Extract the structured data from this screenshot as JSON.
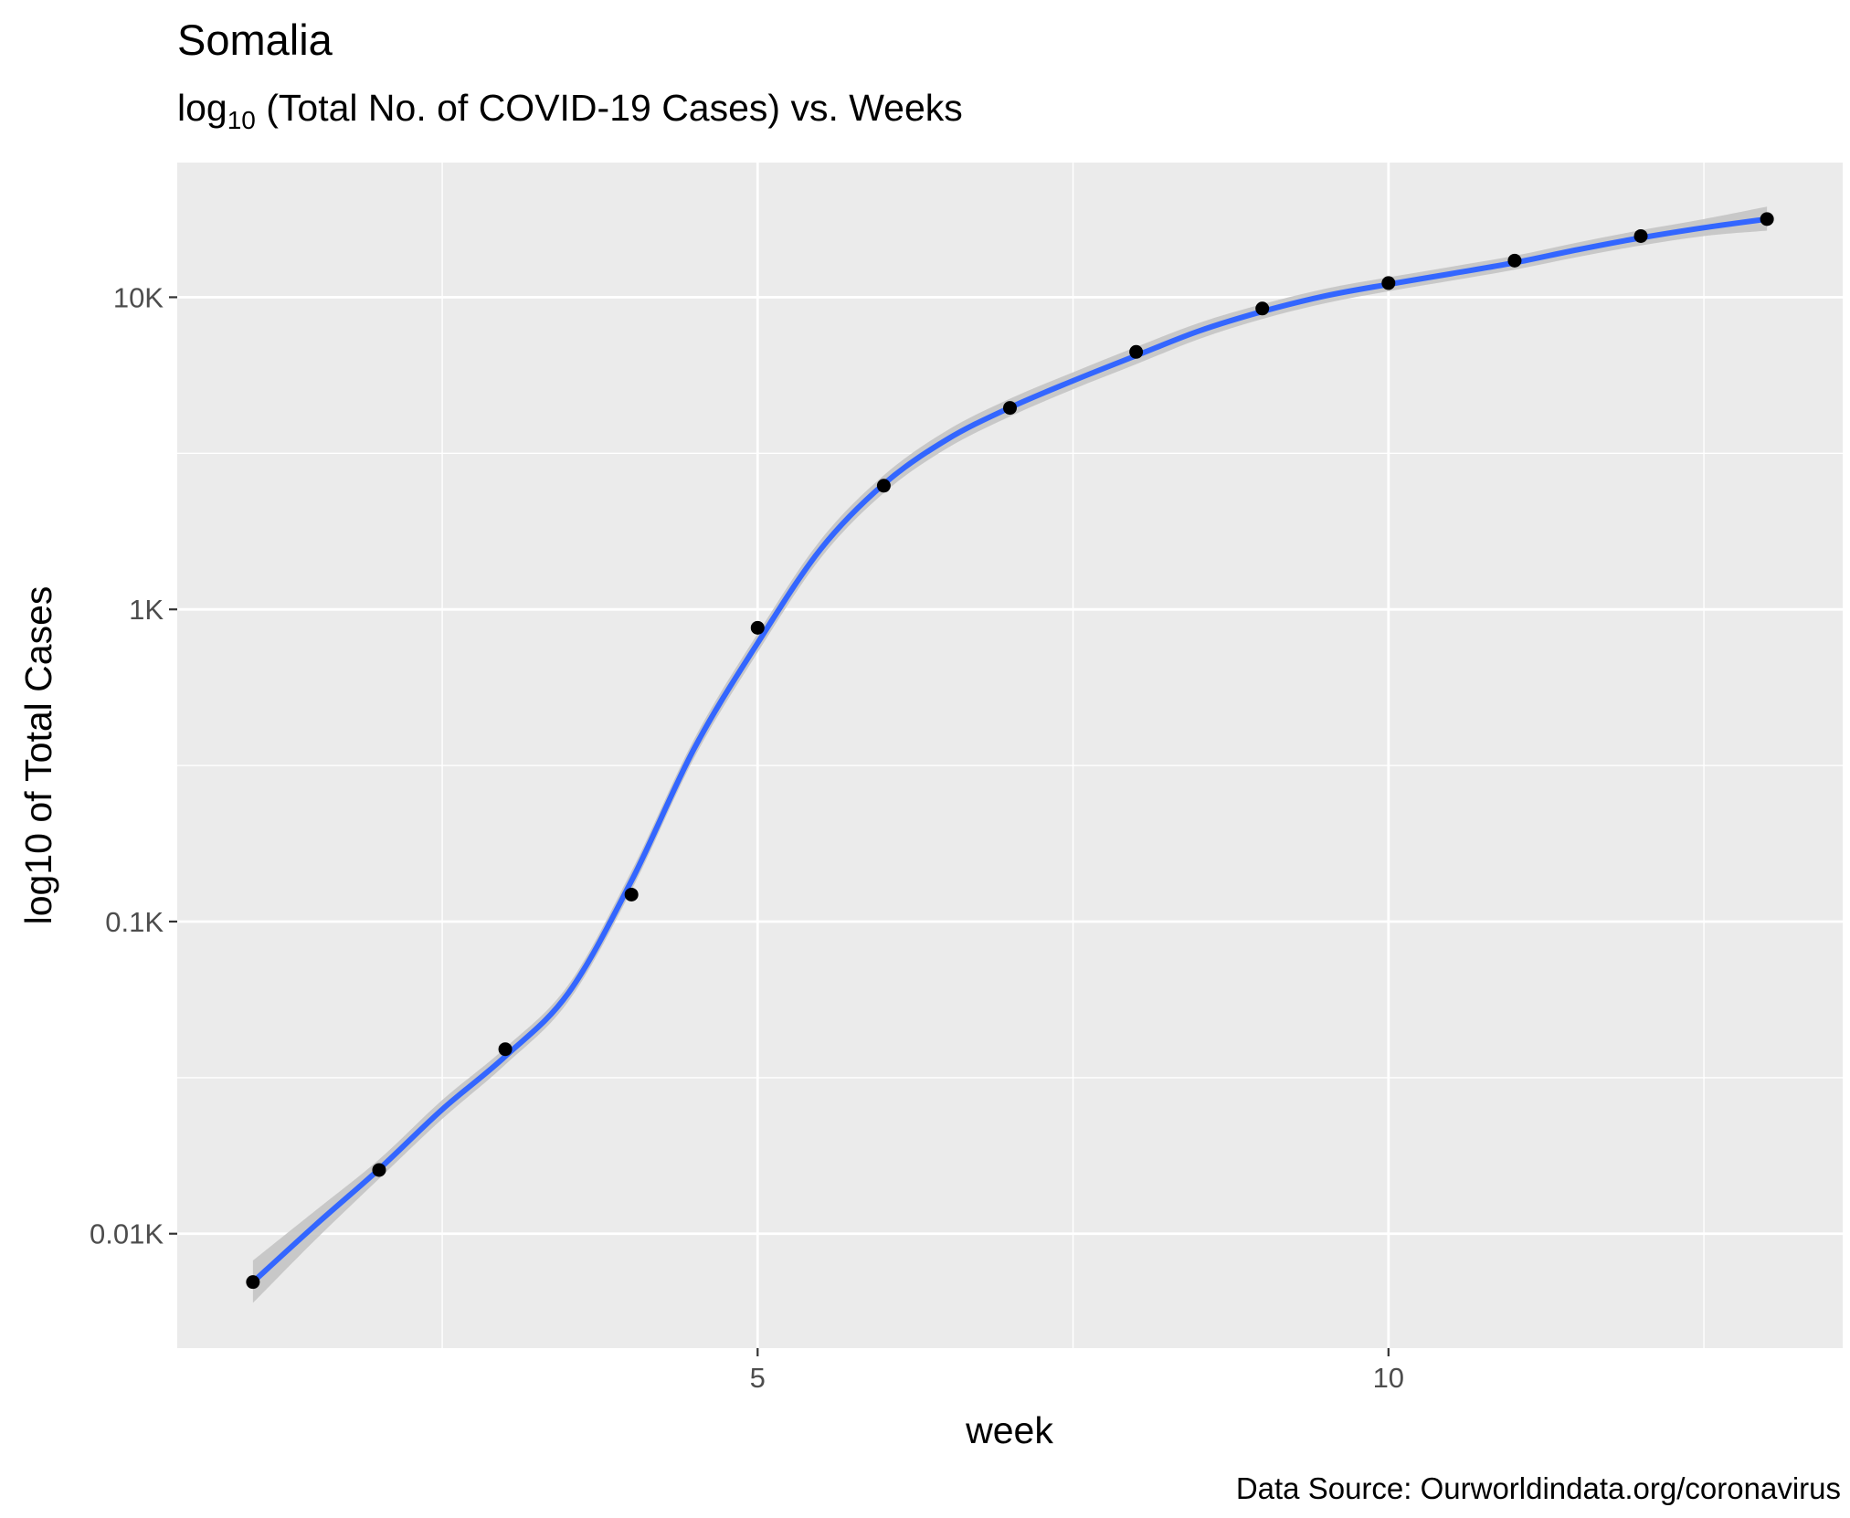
{
  "chart_data": {
    "type": "line",
    "title": "Somalia",
    "subtitle_main": "log",
    "subtitle_sub": "10",
    "subtitle_rest": " (Total No. of COVID-19 Cases) vs. Weeks",
    "xlabel": "week",
    "ylabel": "log10 of Total Cases",
    "caption": "Data Source: Ourworldindata.org/coronavirus",
    "x_scale": "linear",
    "y_scale": "log10",
    "xlim": [
      0.4,
      13.6
    ],
    "ylim": [
      4.3,
      27000
    ],
    "x_ticks": [
      {
        "value": 5,
        "label": "5"
      },
      {
        "value": 10,
        "label": "10"
      }
    ],
    "x_minor_ticks": [
      2.5,
      7.5,
      12.5
    ],
    "y_ticks": [
      {
        "value": 10,
        "label": "0.01K"
      },
      {
        "value": 100,
        "label": "0.1K"
      },
      {
        "value": 1000,
        "label": "1K"
      },
      {
        "value": 10000,
        "label": "10K"
      }
    ],
    "y_minor_ticks": [
      31.6,
      316,
      3162
    ],
    "grid": true,
    "series": [
      {
        "kind": "points",
        "x": [
          1,
          2,
          3,
          4,
          5,
          6,
          7,
          8,
          9,
          10,
          11,
          12,
          13
        ],
        "y": [
          7,
          16,
          39,
          122,
          873,
          2490,
          4420,
          6680,
          9200,
          11100,
          13100,
          15700,
          17800
        ]
      },
      {
        "kind": "smooth",
        "x": [
          1,
          1.5,
          2,
          2.5,
          3,
          3.5,
          4,
          4.5,
          5,
          5.5,
          6,
          6.5,
          7,
          7.5,
          8,
          8.5,
          9,
          9.5,
          10,
          10.5,
          11,
          11.5,
          12,
          12.5,
          13
        ],
        "y": [
          7,
          10.7,
          16.1,
          25,
          37,
          59,
          135,
          360,
          780,
          1560,
          2520,
          3500,
          4430,
          5400,
          6500,
          7800,
          9000,
          10100,
          11000,
          11900,
          12900,
          14200,
          15500,
          16700,
          17800
        ],
        "ribbon_low": [
          6,
          9.6,
          15,
          23.3,
          34.8,
          55.5,
          126,
          336,
          728,
          1460,
          2360,
          3280,
          4150,
          5070,
          6100,
          7350,
          8520,
          9570,
          10450,
          11300,
          12250,
          13450,
          14650,
          15700,
          16350
        ],
        "ribbon_high": [
          8.2,
          11.9,
          17.3,
          26.8,
          39.4,
          62.7,
          145,
          386,
          836,
          1670,
          2690,
          3740,
          4730,
          5750,
          6930,
          8280,
          9500,
          10650,
          11580,
          12530,
          13580,
          14980,
          16400,
          17800,
          19500
        ]
      }
    ],
    "colors": {
      "panel_background": "#ebebeb",
      "grid_major": "#ffffff",
      "smooth_line": "#3366ff",
      "ribbon": "#c2c2c2",
      "points": "#000000"
    }
  }
}
